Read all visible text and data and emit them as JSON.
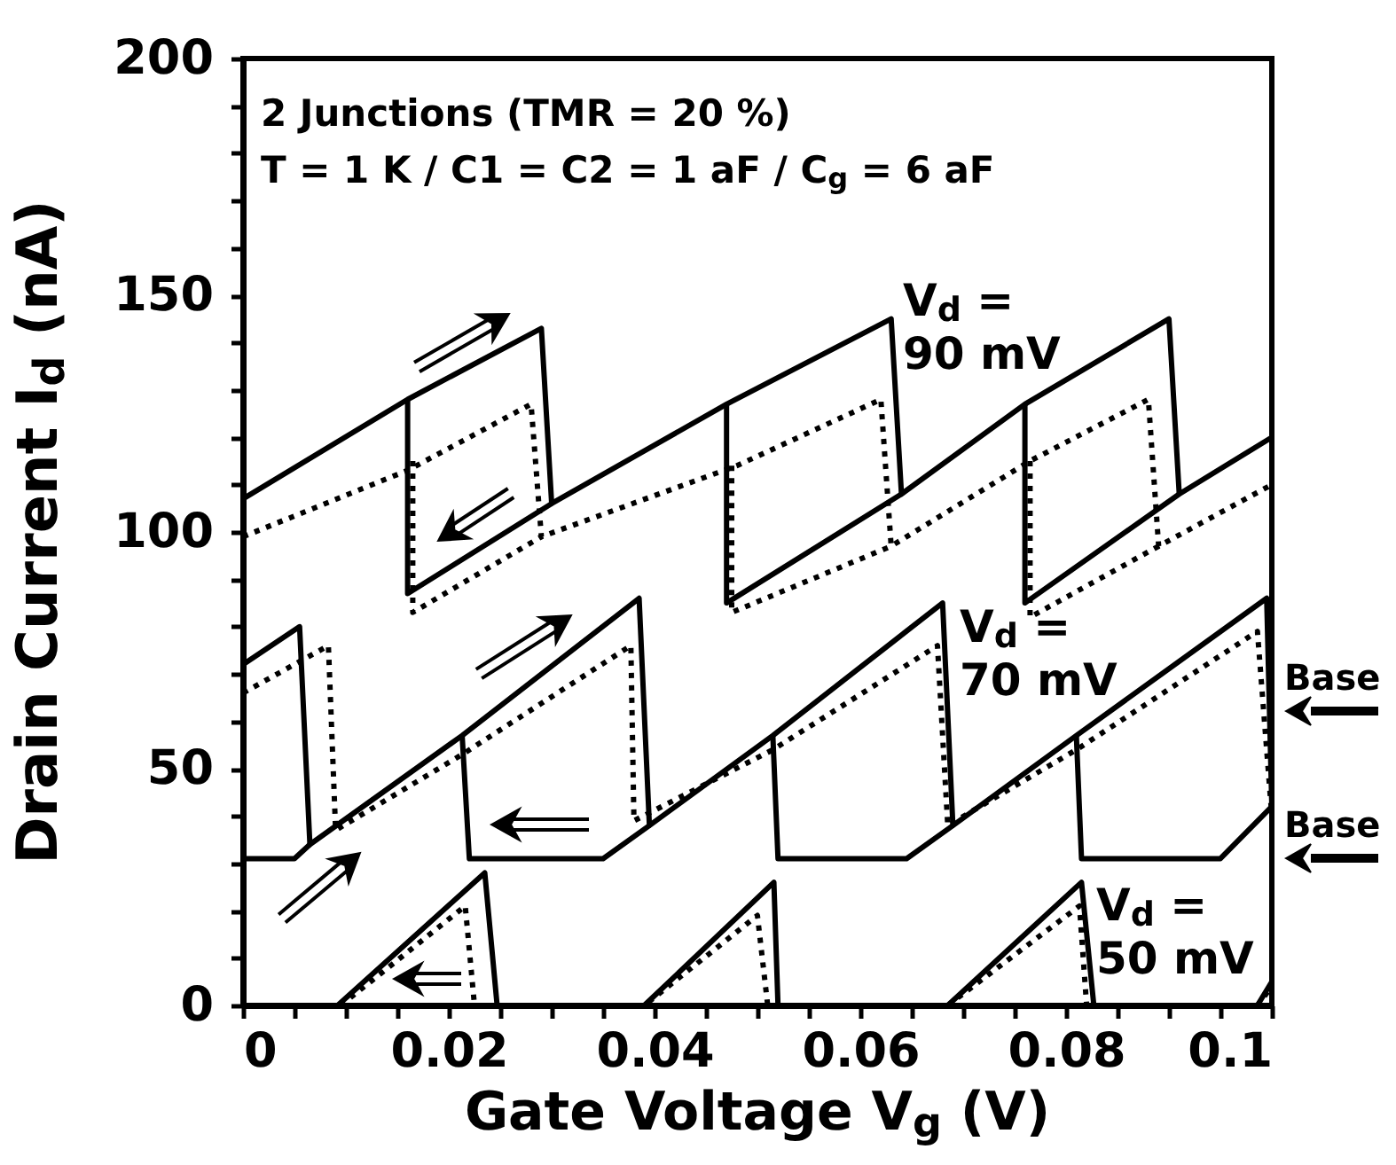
{
  "chart_data": {
    "type": "line",
    "title": "2 Junctions (TMR = 20 %)",
    "subtitle": "T = 1 K / C1 = C2 = 1 aF / C$_{g}$ = 6 aF",
    "xlabel": "Gate Voltage V$_{g}$ (V)",
    "ylabel": "Drain Current I$_{d}$ (nA)",
    "xlim": [
      0,
      0.1
    ],
    "ylim": [
      0,
      200
    ],
    "xticks": [
      0,
      {
        "value": 0.005,
        "label": null
      },
      {
        "value": 0.01,
        "label": null
      },
      {
        "value": 0.015,
        "label": null
      },
      0.02,
      {
        "value": 0.025,
        "label": null
      },
      {
        "value": 0.03,
        "label": null
      },
      {
        "value": 0.035,
        "label": null
      },
      0.04,
      {
        "value": 0.045,
        "label": null
      },
      {
        "value": 0.05,
        "label": null
      },
      {
        "value": 0.055,
        "label": null
      },
      0.06,
      {
        "value": 0.065,
        "label": null
      },
      {
        "value": 0.07,
        "label": null
      },
      {
        "value": 0.075,
        "label": null
      },
      0.08,
      {
        "value": 0.085,
        "label": null
      },
      {
        "value": 0.09,
        "label": null
      },
      {
        "value": 0.095,
        "label": null
      },
      0.1
    ],
    "yticks": [
      0,
      {
        "value": 10,
        "label": null
      },
      {
        "value": 20,
        "label": null
      },
      {
        "value": 30,
        "label": null
      },
      {
        "value": 40,
        "label": null
      },
      50,
      {
        "value": 60,
        "label": null
      },
      {
        "value": 70,
        "label": null
      },
      {
        "value": 80,
        "label": null
      },
      {
        "value": 90,
        "label": null
      },
      100,
      {
        "value": 110,
        "label": null
      },
      {
        "value": 120,
        "label": null
      },
      {
        "value": 130,
        "label": null
      },
      {
        "value": 140,
        "label": null
      },
      150,
      {
        "value": 160,
        "label": null
      },
      {
        "value": 170,
        "label": null
      },
      {
        "value": 180,
        "label": null
      },
      {
        "value": 190,
        "label": null
      },
      200
    ],
    "series": [
      {
        "color": "#000000",
        "line_style": "solid",
        "x": [
          0,
          0.016,
          0.029,
          0.03,
          0.047,
          0.063,
          0.064,
          0.076,
          0.09,
          0.091,
          0.1
        ],
        "values": [
          107,
          128,
          143,
          106,
          127,
          145,
          108,
          127,
          145,
          108,
          120
        ]
      },
      {
        "color": "#000000",
        "line_style": "dotted",
        "x": [
          0,
          0.016,
          0.028,
          0.029,
          0.048,
          0.062,
          0.063,
          0.0765,
          0.088,
          0.089,
          0.1
        ],
        "values": [
          99,
          113,
          127,
          99,
          114,
          128,
          97,
          115,
          128,
          97,
          110
        ]
      },
      {
        "color": "#000000",
        "line_style": "solid",
        "x": [
          0,
          0.0055,
          0.0065,
          0.0213,
          0.0385,
          0.0395,
          0.0515,
          0.068,
          0.069,
          0.081,
          0.0995,
          0.1
        ],
        "values": [
          72,
          80,
          34,
          57,
          86,
          38,
          57,
          85,
          38,
          57,
          86,
          42
        ]
      },
      {
        "color": "#000000",
        "line_style": "dotted",
        "x": [
          0,
          0.0083,
          0.009,
          0.0213,
          0.0377,
          0.038,
          0.0515,
          0.0675,
          0.0685,
          0.081,
          0.0986,
          0.1
        ],
        "values": [
          66,
          76,
          37,
          53,
          76,
          39,
          54,
          76,
          38,
          54,
          79,
          40
        ]
      },
      {
        "color": "#000000",
        "line_style": "solid",
        "x": [
          0.0092,
          0.0235,
          0.0247,
          0.039,
          0.0516,
          0.052,
          0.0685,
          0.0815,
          0.0827,
          0.0986,
          0.1
        ],
        "values": [
          0,
          28,
          0,
          0,
          26,
          0,
          0,
          26,
          0,
          0,
          5
        ]
      },
      {
        "color": "#000000",
        "line_style": "dotted",
        "x": [
          0.0095,
          0.0216,
          0.0225,
          0.039,
          0.05,
          0.051,
          0.0685,
          0.0813,
          0.082,
          0.0986,
          0.1
        ],
        "values": [
          0,
          21,
          0,
          0,
          19,
          0,
          0,
          21,
          0,
          0,
          4
        ]
      },
      {
        "color": "#000000",
        "line_style": "solid",
        "x": [
          0.016,
          0.016,
          0.03,
          0.04,
          0.047,
          0.047,
          0.064,
          0.07,
          0.076,
          0.076,
          0.091
        ],
        "values": [
          128,
          87,
          106,
          null,
          127,
          85,
          108,
          null,
          127,
          85,
          108
        ]
      },
      {
        "color": "#000000",
        "line_style": "dotted",
        "x": [
          0.0165,
          0.0165,
          0.029,
          0.04,
          0.0475,
          0.0475,
          0.063,
          0.07,
          0.0765,
          0.0765,
          0.089
        ],
        "values": [
          115,
          83,
          99,
          null,
          114,
          83,
          97,
          null,
          115,
          82,
          97
        ]
      },
      {
        "color": "#000000",
        "line_style": "solid",
        "x": [
          0,
          0.005,
          0.0065,
          0.014,
          0.0213,
          0.022,
          0.035,
          0.0395,
          0.045,
          0.0515,
          0.052,
          0.0645,
          0.069,
          0.075,
          0.081,
          0.0815,
          0.095,
          0.1
        ],
        "values": [
          31,
          31,
          34,
          null,
          57,
          31,
          31,
          38,
          null,
          57,
          31,
          31,
          38,
          null,
          57,
          31,
          31,
          42
        ]
      }
    ],
    "annotations": [
      "V$_{d}$ = 90 mV",
      "V$_{d}$ = 70 mV",
      "V$_{d}$ = 50 mV",
      "Base",
      "Base"
    ]
  }
}
